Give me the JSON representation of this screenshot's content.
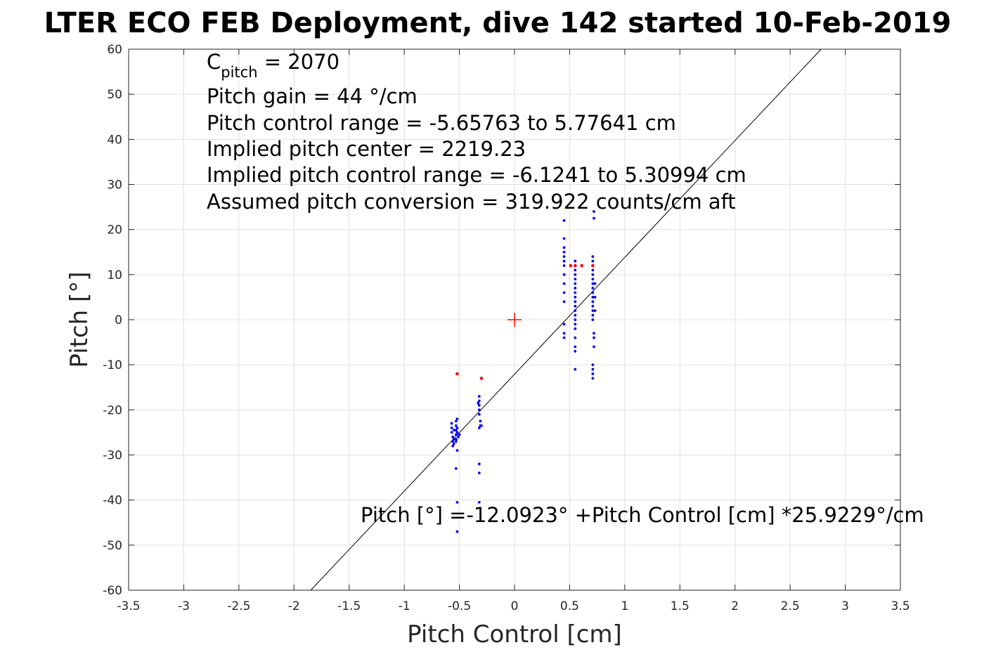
{
  "chart_data": {
    "type": "scatter",
    "title": "LTER ECO FEB Deployment, dive 142 started 10-Feb-2019",
    "xlabel": "Pitch Control [cm]",
    "ylabel": "Pitch [°]",
    "xlim": [
      -3.5,
      3.5
    ],
    "ylim": [
      -60,
      60
    ],
    "x_ticks": [
      "-3.5",
      "-3",
      "-2.5",
      "-2",
      "-1.5",
      "-1",
      "-0.5",
      "0",
      "0.5",
      "1",
      "1.5",
      "2",
      "2.5",
      "3",
      "3.5"
    ],
    "y_ticks": [
      "60",
      "50",
      "40",
      "30",
      "20",
      "10",
      "0",
      "-10",
      "-20",
      "-30",
      "-40",
      "-50",
      "-60"
    ],
    "grid": true,
    "colors": {
      "fit_line": "#000000",
      "points": "#0000ff",
      "flagged": "#ff0000",
      "grid": "#e0e0e0",
      "axes": "#262626"
    },
    "fit_line": {
      "intercept": -12.0923,
      "slope": 25.9229
    },
    "center_marker": {
      "x": 0,
      "y": 0
    },
    "annotations": {
      "c_pitch_main": "C",
      "c_pitch_sub": "pitch",
      "c_pitch_value": " = 2070",
      "gain": "Pitch gain = 44 °/cm",
      "control_range": "Pitch control range = -5.65763 to 5.77641 cm",
      "implied_center": "Implied pitch center = 2219.23",
      "implied_range": "Implied pitch control range = -6.1241 to 5.30994 cm",
      "conversion": "Assumed pitch conversion = 319.922 counts/cm aft",
      "fit_equation": "Pitch [°] =-12.0923° +Pitch Control [cm] *25.9229°/cm"
    },
    "series": [
      {
        "points": [
          [
            -0.57,
            -23
          ],
          [
            -0.57,
            -24
          ],
          [
            -0.57,
            -25
          ],
          [
            -0.56,
            -26
          ],
          [
            -0.56,
            -27
          ],
          [
            -0.56,
            -28
          ],
          [
            -0.55,
            -26.5
          ],
          [
            -0.55,
            -24.5
          ],
          [
            -0.55,
            -27.5
          ],
          [
            -0.53,
            -22.5
          ],
          [
            -0.53,
            -23.5
          ],
          [
            -0.53,
            -24.5
          ],
          [
            -0.53,
            -25.5
          ],
          [
            -0.53,
            -26.5
          ],
          [
            -0.53,
            -27
          ],
          [
            -0.52,
            -22
          ],
          [
            -0.52,
            -24
          ],
          [
            -0.52,
            -25
          ],
          [
            -0.52,
            -29
          ],
          [
            -0.51,
            -26
          ],
          [
            -0.5,
            -25.5
          ],
          [
            -0.53,
            -33
          ],
          [
            -0.52,
            -40.5
          ],
          [
            -0.52,
            -47
          ],
          [
            -0.32,
            -17
          ],
          [
            -0.32,
            -18
          ],
          [
            -0.32,
            -19
          ],
          [
            -0.32,
            -20
          ],
          [
            -0.32,
            -21
          ],
          [
            -0.31,
            -22.5
          ],
          [
            -0.31,
            -23.5
          ],
          [
            -0.32,
            -24
          ],
          [
            -0.3,
            -23.5
          ],
          [
            -0.33,
            -18.5
          ],
          [
            -0.32,
            -32
          ],
          [
            -0.32,
            -34
          ],
          [
            -0.32,
            -40.5
          ],
          [
            0.45,
            22
          ],
          [
            0.45,
            18
          ],
          [
            0.45,
            16
          ],
          [
            0.45,
            15
          ],
          [
            0.45,
            14
          ],
          [
            0.45,
            13
          ],
          [
            0.45,
            12
          ],
          [
            0.45,
            10
          ],
          [
            0.45,
            8
          ],
          [
            0.45,
            6
          ],
          [
            0.45,
            4
          ],
          [
            0.45,
            -1
          ],
          [
            0.45,
            -3
          ],
          [
            0.45,
            -4
          ],
          [
            0.55,
            13
          ],
          [
            0.55,
            12
          ],
          [
            0.55,
            11
          ],
          [
            0.55,
            10
          ],
          [
            0.55,
            9
          ],
          [
            0.55,
            8
          ],
          [
            0.55,
            7
          ],
          [
            0.55,
            6
          ],
          [
            0.55,
            5
          ],
          [
            0.55,
            4
          ],
          [
            0.55,
            3
          ],
          [
            0.55,
            2
          ],
          [
            0.55,
            1
          ],
          [
            0.55,
            0
          ],
          [
            0.55,
            -1
          ],
          [
            0.55,
            -2
          ],
          [
            0.55,
            -4
          ],
          [
            0.55,
            -6
          ],
          [
            0.55,
            -7
          ],
          [
            0.55,
            -11
          ],
          [
            0.71,
            14
          ],
          [
            0.71,
            13
          ],
          [
            0.71,
            12
          ],
          [
            0.71,
            11
          ],
          [
            0.71,
            10
          ],
          [
            0.71,
            9
          ],
          [
            0.71,
            8
          ],
          [
            0.71,
            7
          ],
          [
            0.71,
            6
          ],
          [
            0.71,
            5
          ],
          [
            0.71,
            4
          ],
          [
            0.71,
            3
          ],
          [
            0.71,
            2
          ],
          [
            0.71,
            1
          ],
          [
            0.71,
            0
          ],
          [
            0.72,
            -3
          ],
          [
            0.72,
            -4
          ],
          [
            0.72,
            -6
          ],
          [
            0.71,
            -10
          ],
          [
            0.71,
            -11
          ],
          [
            0.71,
            -12
          ],
          [
            0.71,
            -13
          ],
          [
            0.72,
            22.5
          ],
          [
            0.72,
            24
          ],
          [
            0.73,
            8
          ],
          [
            0.73,
            5
          ],
          [
            0.73,
            2
          ]
        ]
      },
      {
        "points": [
          [
            -0.52,
            -12
          ],
          [
            -0.3,
            -13
          ],
          [
            0.51,
            12
          ],
          [
            0.55,
            12
          ],
          [
            0.61,
            12
          ],
          [
            0.71,
            12
          ]
        ]
      }
    ]
  }
}
